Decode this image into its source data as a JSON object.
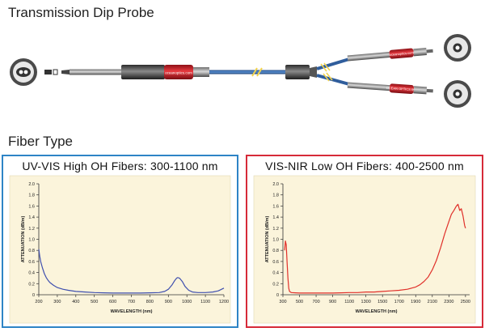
{
  "headings": {
    "probe": "Transmission Dip Probe",
    "fiber": "Fiber Type"
  },
  "colors": {
    "left_border": "#2e84c6",
    "right_border": "#d62a39",
    "chart_bg": "#fbf4db",
    "left_series": "#3f4fae",
    "right_series": "#e0302a",
    "cable_blue": "#3b6fb4",
    "connector_red": "#d8262e"
  },
  "chart_data": [
    {
      "type": "line",
      "title": "UV-VIS High OH Fibers: 300-1100 nm",
      "xlabel": "WAVELENGTH (nm)",
      "ylabel": "ATTENUATION (dB/m)",
      "xlim": [
        200,
        1200
      ],
      "ylim": [
        0,
        2.0
      ],
      "xticks": [
        200,
        300,
        400,
        500,
        600,
        700,
        800,
        900,
        1000,
        1100,
        1200
      ],
      "yticks": [
        0,
        0.2,
        0.4,
        0.6,
        0.8,
        1.0,
        1.2,
        1.4,
        1.6,
        1.8,
        2.0
      ],
      "ytick_labels": [
        "0",
        "0.2",
        "0.4",
        "0.6",
        "0.8",
        "1.0",
        "1.2",
        "1.4",
        "1.6",
        "1.8",
        "2.0"
      ],
      "grid": false,
      "series": [
        {
          "color": "#3f4fae",
          "x": [
            200,
            205,
            210,
            220,
            230,
            240,
            250,
            260,
            280,
            300,
            330,
            360,
            400,
            450,
            500,
            550,
            600,
            650,
            700,
            750,
            800,
            850,
            880,
            900,
            920,
            935,
            945,
            950,
            960,
            975,
            990,
            1010,
            1030,
            1060,
            1100,
            1140,
            1170,
            1200
          ],
          "y": [
            0.82,
            0.7,
            0.6,
            0.48,
            0.38,
            0.31,
            0.26,
            0.22,
            0.17,
            0.13,
            0.1,
            0.08,
            0.06,
            0.05,
            0.04,
            0.035,
            0.03,
            0.03,
            0.03,
            0.03,
            0.035,
            0.04,
            0.06,
            0.1,
            0.18,
            0.26,
            0.3,
            0.31,
            0.3,
            0.24,
            0.15,
            0.08,
            0.05,
            0.04,
            0.04,
            0.05,
            0.07,
            0.12
          ]
        }
      ]
    },
    {
      "type": "line",
      "title": "VIS-NIR Low OH Fibers: 400-2500 nm",
      "xlabel": "WAVELENGTH (nm)",
      "ylabel": "ATTENUATION (dB/m)",
      "xlim": [
        300,
        2550
      ],
      "ylim": [
        0,
        2.0
      ],
      "xticks": [
        300,
        500,
        700,
        900,
        1100,
        1300,
        1500,
        1700,
        1900,
        2100,
        2300,
        2500
      ],
      "yticks": [
        0,
        0.2,
        0.4,
        0.6,
        0.8,
        1.0,
        1.2,
        1.4,
        1.6,
        1.8,
        2.0
      ],
      "ytick_labels": [
        "0",
        "0.2",
        "0.4",
        "0.6",
        "0.8",
        "1.0",
        "1.2",
        "1.4",
        "1.6",
        "1.8",
        "2.0"
      ],
      "grid": false,
      "series": [
        {
          "color": "#e0302a",
          "x": [
            320,
            330,
            340,
            350,
            360,
            370,
            380,
            400,
            450,
            500,
            600,
            700,
            800,
            900,
            1000,
            1100,
            1200,
            1300,
            1400,
            1500,
            1600,
            1700,
            1800,
            1850,
            1900,
            1950,
            2000,
            2050,
            2100,
            2150,
            2200,
            2250,
            2300,
            2330,
            2360,
            2390,
            2410,
            2430,
            2450,
            2470,
            2490,
            2500
          ],
          "y": [
            0.8,
            0.97,
            0.9,
            0.6,
            0.3,
            0.12,
            0.06,
            0.04,
            0.035,
            0.03,
            0.03,
            0.03,
            0.03,
            0.03,
            0.035,
            0.04,
            0.04,
            0.05,
            0.05,
            0.06,
            0.07,
            0.08,
            0.1,
            0.12,
            0.14,
            0.18,
            0.24,
            0.32,
            0.45,
            0.62,
            0.85,
            1.1,
            1.32,
            1.45,
            1.52,
            1.6,
            1.63,
            1.52,
            1.55,
            1.42,
            1.25,
            1.2
          ]
        }
      ]
    }
  ],
  "cable_labels": {
    "main_connector": "oceanoptics.com",
    "upper_connector": "oceanoptics.com",
    "lower_connector": "OCEAN OPTICS INC"
  }
}
